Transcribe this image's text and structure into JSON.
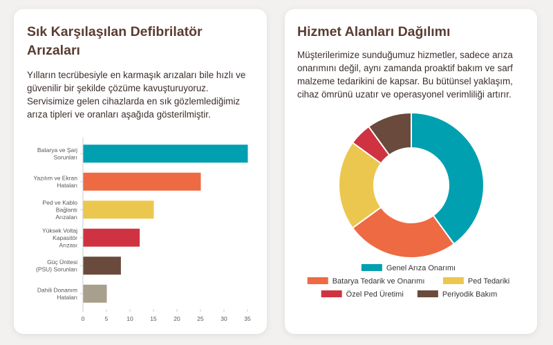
{
  "left_card": {
    "title": "Sık Karşılaşılan Defibrilatör Arızaları",
    "description": "Yılların tecrübesiyle en karmaşık arızaları bile hızlı ve güvenilir bir şekilde çözüme kavuşturuyoruz. Servisimize gelen cihazlarda en sık gözlemlediğimiz arıza tipleri ve oranları aşağıda gösterilmiştir."
  },
  "right_card": {
    "title": "Hizmet Alanları Dağılımı",
    "description": "Müşterilerimize sunduğumuz hizmetler, sadece arıza onarımını değil, aynı zamanda proaktif bakım ve sarf malzeme tedarikini de kapsar. Bu bütünsel yaklaşım, cihaz ömrünü uzatır ve operasyonel verimliliği artırır."
  },
  "chart_data": [
    {
      "type": "bar",
      "orientation": "horizontal",
      "categories": [
        [
          "Batarya ve Şarj",
          "Sorunları"
        ],
        [
          "Yazılım ve Ekran",
          "Hataları"
        ],
        [
          "Ped ve Kablo",
          "Bağlantı",
          "Arızaları"
        ],
        [
          "Yüksek Voltaj",
          "Kapasitör",
          "Arızası"
        ],
        [
          "Güç Ünitesi",
          "(PSU) Sorunları"
        ],
        [
          "Dahili Donanım",
          "Hataları"
        ]
      ],
      "values": [
        35,
        25,
        15,
        12,
        8,
        5
      ],
      "colors": [
        "#00a0b0",
        "#ee6a42",
        "#ebc74f",
        "#cf3341",
        "#6a4a3c",
        "#a89f8c"
      ],
      "xlim": [
        0,
        35
      ],
      "xticks": [
        0,
        5,
        10,
        15,
        20,
        25,
        30,
        35
      ],
      "grid": false
    },
    {
      "type": "pie",
      "variant": "doughnut",
      "labels": [
        "Genel Arıza Onarımı",
        "Batarya Tedarik ve Onarımı",
        "Ped Tedariki",
        "Özel Ped Üretimi",
        "Periyodik Bakım"
      ],
      "values": [
        40,
        25,
        20,
        5,
        10
      ],
      "colors": [
        "#00a0b0",
        "#ee6a42",
        "#ebc74f",
        "#cf3341",
        "#6a4a3c"
      ],
      "legend": "bottom"
    }
  ]
}
